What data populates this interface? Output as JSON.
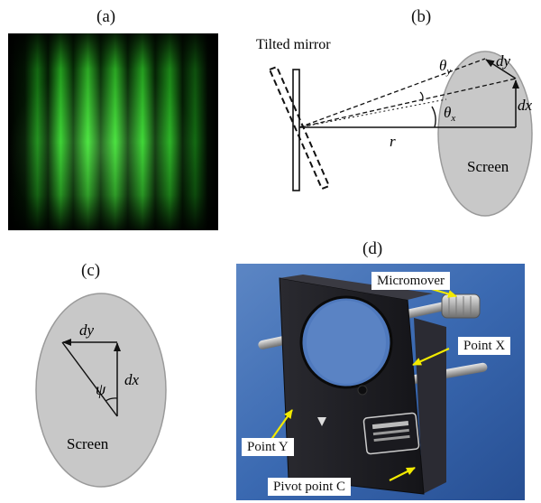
{
  "panels": {
    "a": {
      "label": "(a)"
    },
    "b": {
      "label": "(b)",
      "mirror_label": "Tilted mirror",
      "theta_y_base": "θ",
      "theta_y_sub": "y",
      "theta_x_base": "θ",
      "theta_x_sub": "x",
      "dy": "dy",
      "dx": "dx",
      "r": "r",
      "screen": "Screen"
    },
    "c": {
      "label": "(c)",
      "dy": "dy",
      "dx": "dx",
      "psi": "ψ",
      "screen": "Screen"
    },
    "d": {
      "label": "(d)",
      "micromover": "Micromover",
      "point_x": "Point X",
      "point_y": "Point Y",
      "pivot": "Pivot point C"
    }
  },
  "colors": {
    "fringe_green": "#2fcf28",
    "screen_fill": "#c8c8c8",
    "arrow_yellow": "#f2ea00",
    "photo_background": "#2f5fa8",
    "mount_body": "#1e1e22"
  }
}
